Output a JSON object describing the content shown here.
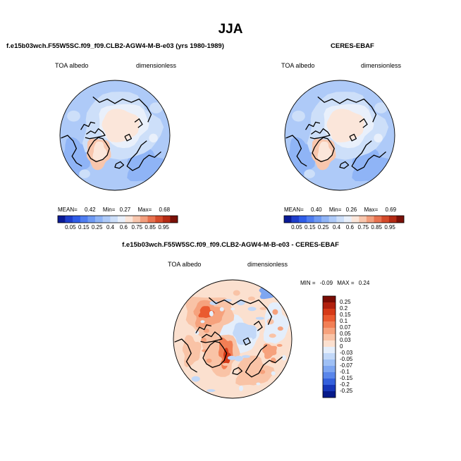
{
  "figure": {
    "title": "JJA"
  },
  "chart_data": [
    {
      "type": "heatmap",
      "projection": "north-polar-stereographic",
      "title": "f.e15b03wch.F55W5SC.f09_f09.CLB2-AGW4-M-B-e03 (yrs 1980-1989)",
      "left_label": "TOA albedo",
      "right_label": "dimensionless",
      "stats": {
        "mean_label": "MEAN=",
        "mean": "0.42",
        "min_label": "Min=",
        "min": "0.27",
        "max_label": "Max=",
        "max": "0.68"
      },
      "colorbar": {
        "orientation": "horizontal",
        "tick_labels": [
          "0.05",
          "0.15",
          "0.25",
          "0.4",
          "0.6",
          "0.75",
          "0.85",
          "0.95"
        ],
        "colors": [
          "#0a1a96",
          "#1e3ecc",
          "#2f5de8",
          "#4f7df0",
          "#6f9af3",
          "#8fb4f6",
          "#aecaf8",
          "#cddff9",
          "#e9f0fb",
          "#fbe6da",
          "#f8c6ad",
          "#f29e7d",
          "#e8724f",
          "#d44a2a",
          "#b42a14",
          "#7a1008"
        ]
      }
    },
    {
      "type": "heatmap",
      "projection": "north-polar-stereographic",
      "title": "CERES-EBAF",
      "left_label": "TOA albedo",
      "right_label": "dimensionless",
      "stats": {
        "mean_label": "MEAN=",
        "mean": "0.40",
        "min_label": "Min=",
        "min": "0.26",
        "max_label": "Max=",
        "max": "0.69"
      },
      "colorbar": {
        "orientation": "horizontal",
        "tick_labels": [
          "0.05",
          "0.15",
          "0.25",
          "0.4",
          "0.6",
          "0.75",
          "0.85",
          "0.95"
        ],
        "colors": [
          "#0a1a96",
          "#1e3ecc",
          "#2f5de8",
          "#4f7df0",
          "#6f9af3",
          "#8fb4f6",
          "#aecaf8",
          "#cddff9",
          "#e9f0fb",
          "#fbe6da",
          "#f8c6ad",
          "#f29e7d",
          "#e8724f",
          "#d44a2a",
          "#b42a14",
          "#7a1008"
        ]
      }
    },
    {
      "type": "heatmap",
      "projection": "north-polar-stereographic",
      "title": "f.e15b03wch.F55W5SC.f09_f09.CLB2-AGW4-M-B-e03 - CERES-EBAF",
      "left_label": "TOA albedo",
      "right_label": "dimensionless",
      "stats": {
        "min_label": "MIN =",
        "min": "-0.09",
        "max_label": "MAX =",
        "max": "0.24"
      },
      "colorbar": {
        "orientation": "vertical",
        "tick_labels": [
          "0.25",
          "0.2",
          "0.15",
          "0.1",
          "0.07",
          "0.05",
          "0.03",
          "0",
          "-0.03",
          "-0.05",
          "-0.07",
          "-0.1",
          "-0.15",
          "-0.2",
          "-0.25"
        ],
        "colors": [
          "#7a0c04",
          "#b0200e",
          "#d63a18",
          "#ea5a30",
          "#f27f55",
          "#f6a27d",
          "#f9c3a6",
          "#fbe0cf",
          "#e4eefb",
          "#c2d8f8",
          "#9fc0f5",
          "#7ea6f1",
          "#5a86ea",
          "#3460dc",
          "#1636b8",
          "#061a8a"
        ]
      }
    }
  ]
}
